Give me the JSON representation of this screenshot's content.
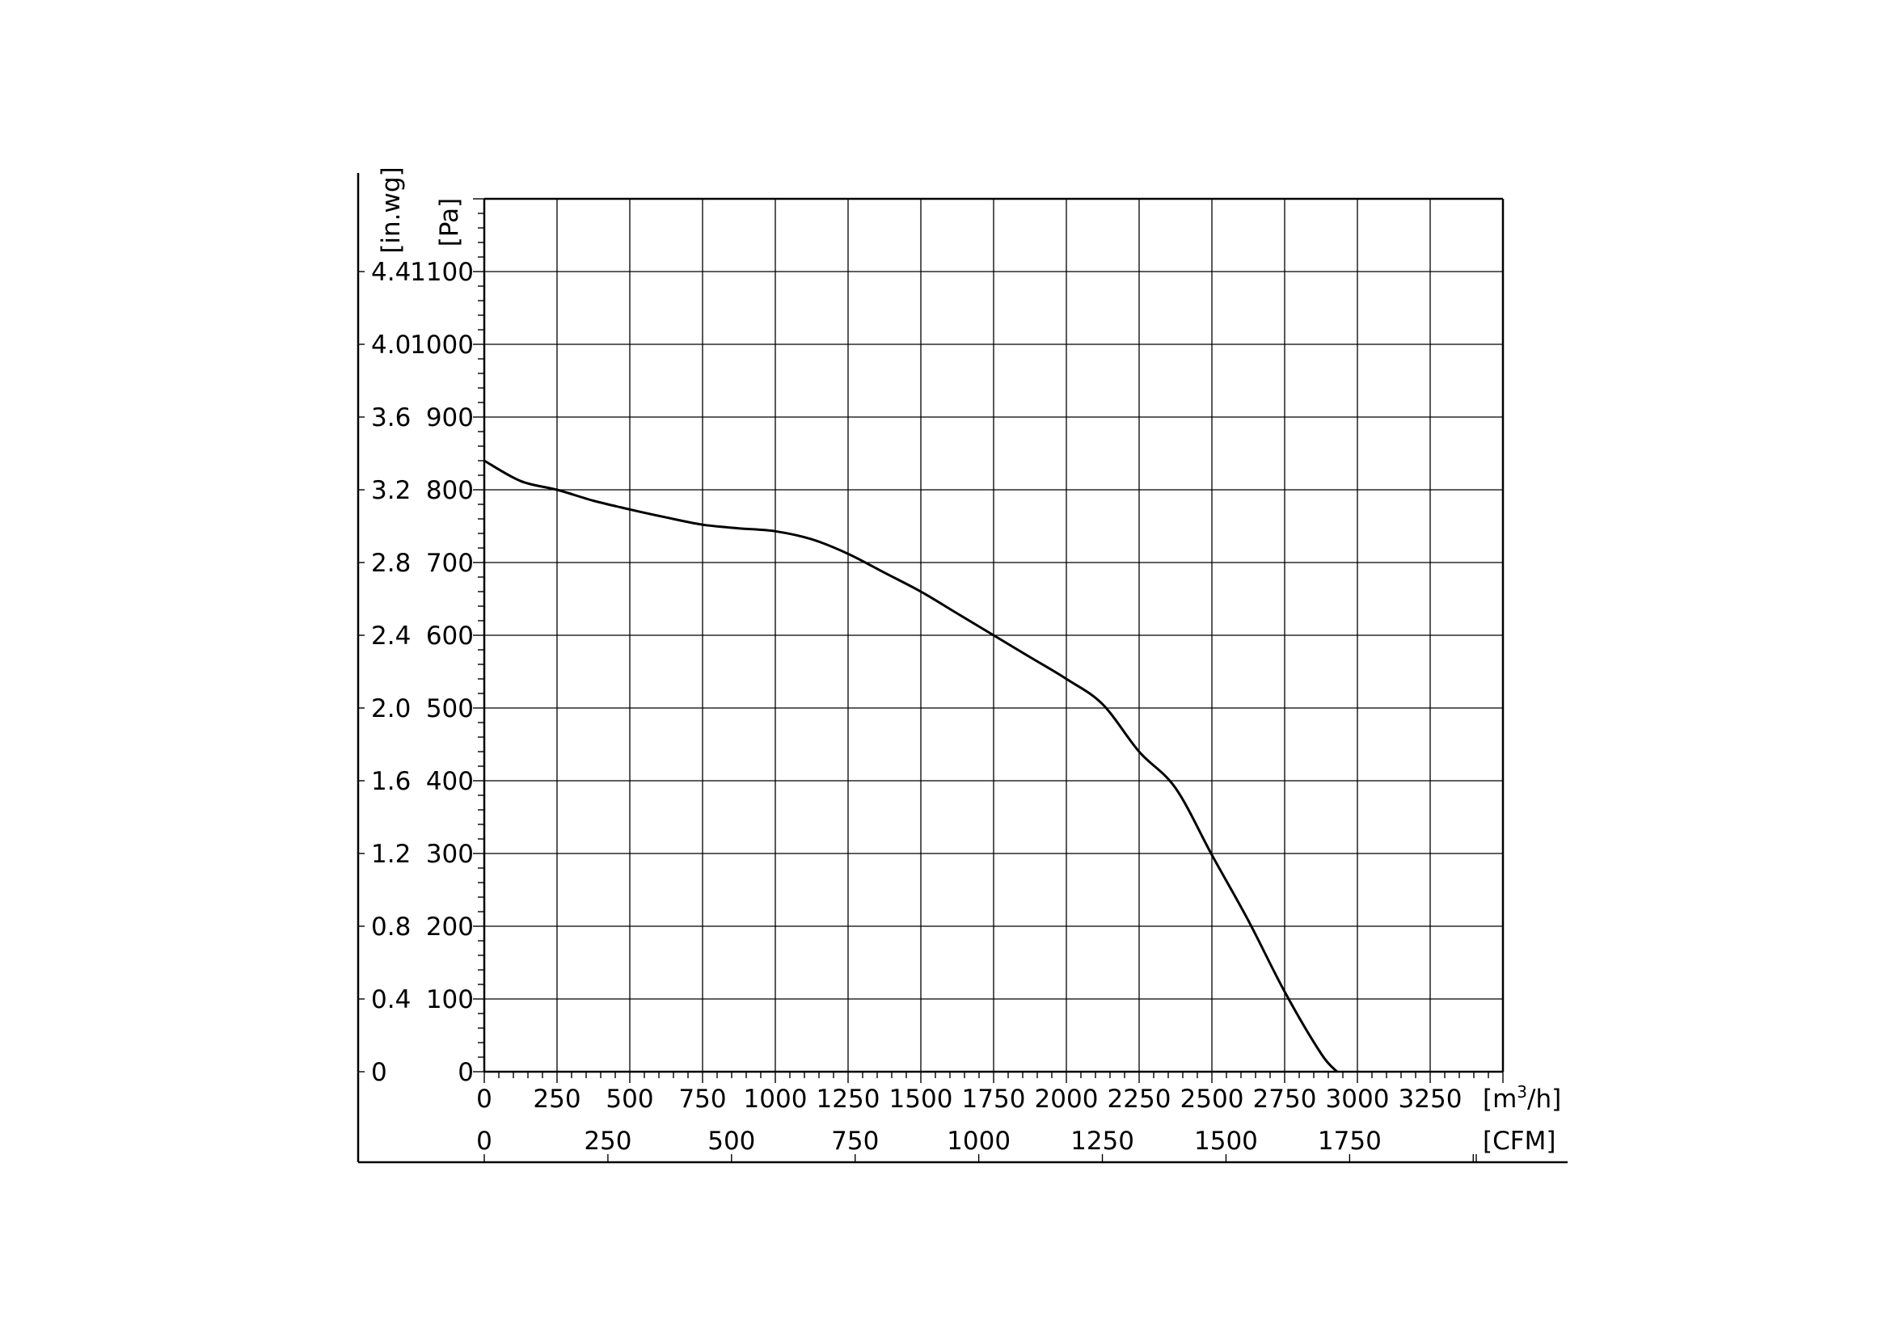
{
  "chart_data": {
    "type": "line",
    "xlabel": "[m³/h]",
    "xlabel_base": "[m",
    "xlabel_sup": "3",
    "xlabel_tail": "/h]",
    "x2label": "[CFM]",
    "ylabel": "[Pa]",
    "y2label": "[in.wg]",
    "xlim": [
      0,
      3500
    ],
    "ylim": [
      0,
      1200
    ],
    "grid": true,
    "x_ticks": [
      "0",
      "250",
      "500",
      "750",
      "1000",
      "1250",
      "1500",
      "1750",
      "2000",
      "2250",
      "2500",
      "2750",
      "3000",
      "3250"
    ],
    "x_tick_values": [
      0,
      250,
      500,
      750,
      1000,
      1250,
      1500,
      1750,
      2000,
      2250,
      2500,
      2750,
      3000,
      3250
    ],
    "x2_ticks": [
      "0",
      "250",
      "500",
      "750",
      "1000",
      "1250",
      "1500",
      "1750"
    ],
    "x2_tick_values": [
      0,
      250,
      500,
      750,
      1000,
      1250,
      1500,
      1750
    ],
    "y_ticks": [
      "0",
      "100",
      "200",
      "300",
      "400",
      "500",
      "600",
      "700",
      "800",
      "900",
      "1000",
      "1100"
    ],
    "y_tick_values": [
      0,
      100,
      200,
      300,
      400,
      500,
      600,
      700,
      800,
      900,
      1000,
      1100
    ],
    "y2_ticks": [
      "0",
      "0.4",
      "0.8",
      "1.2",
      "1.6",
      "2.0",
      "2.4",
      "2.8",
      "3.2",
      "3.6",
      "4.0",
      "4.4"
    ],
    "series": [
      {
        "x": [
          0,
          125,
          250,
          375,
          500,
          625,
          750,
          875,
          1000,
          1125,
          1250,
          1375,
          1500,
          1625,
          1750,
          1875,
          2000,
          2125,
          2250,
          2375,
          2500,
          2625,
          2750,
          2875,
          2930
        ],
        "y": [
          840,
          812,
          800,
          785,
          773,
          762,
          752,
          747,
          743,
          732,
          712,
          686,
          660,
          630,
          600,
          570,
          540,
          505,
          440,
          390,
          298,
          208,
          110,
          25,
          0
        ]
      }
    ]
  }
}
